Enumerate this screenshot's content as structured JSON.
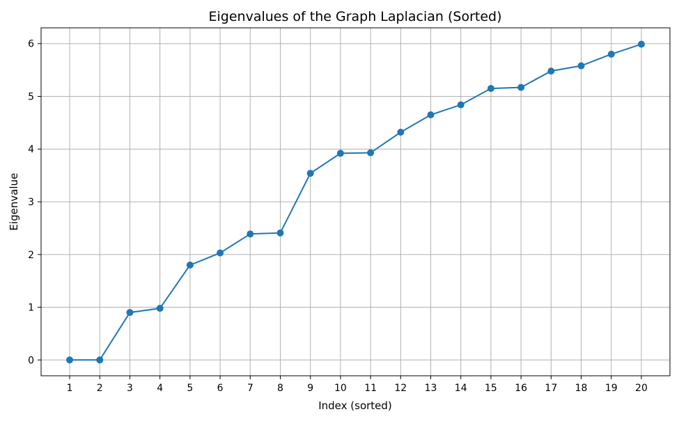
{
  "chart_data": {
    "type": "line",
    "title": "Eigenvalues of the Graph Laplacian (Sorted)",
    "xlabel": "Index (sorted)",
    "ylabel": "Eigenvalue",
    "x": [
      1,
      2,
      3,
      4,
      5,
      6,
      7,
      8,
      9,
      10,
      11,
      12,
      13,
      14,
      15,
      16,
      17,
      18,
      19,
      20
    ],
    "series": [
      {
        "values": [
          0.0,
          0.0,
          0.9,
          0.98,
          1.8,
          2.03,
          2.39,
          2.41,
          3.54,
          3.92,
          3.93,
          4.32,
          4.65,
          4.84,
          5.15,
          5.17,
          5.48,
          5.58,
          5.8,
          5.99
        ],
        "color": "#1f77b4",
        "marker": "circle"
      }
    ],
    "xlim": [
      0.05,
      20.95
    ],
    "ylim": [
      -0.3,
      6.3
    ],
    "xticks": [
      "1",
      "2",
      "3",
      "4",
      "5",
      "6",
      "7",
      "8",
      "9",
      "10",
      "11",
      "12",
      "13",
      "14",
      "15",
      "16",
      "17",
      "18",
      "19",
      "20"
    ],
    "yticks": [
      "0",
      "1",
      "2",
      "3",
      "4",
      "5",
      "6"
    ],
    "grid": true
  }
}
